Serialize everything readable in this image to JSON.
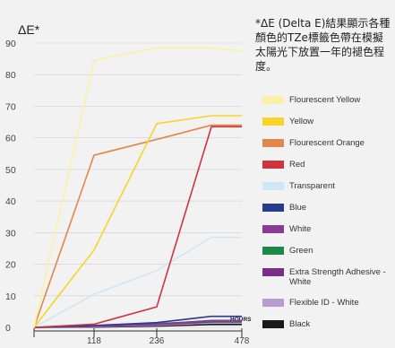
{
  "note": "*ΔE (Delta E)結果顯示各種顏色的TZe標籤色帶在模擬太陽光下放置一年的褪色程度。",
  "chart_data": {
    "type": "line",
    "ylabel": "ΔE*",
    "xlabel": "HOURS",
    "x": [
      0,
      118,
      236,
      354,
      478
    ],
    "x_tick_labels": [
      "118",
      "236",
      "478"
    ],
    "x_tick_values": [
      118,
      236,
      478
    ],
    "ylim": [
      0,
      90
    ],
    "yticks": [
      0,
      10,
      20,
      30,
      40,
      50,
      60,
      70,
      80,
      90
    ],
    "grid": true,
    "legend_position": "right",
    "series": [
      {
        "name": "Flourescent Yellow",
        "color": "#fbf0a6",
        "values": [
          0,
          84.5,
          88.5,
          88.5,
          87.5
        ]
      },
      {
        "name": "Yellow",
        "color": "#f8d32a",
        "values": [
          0,
          24.5,
          64.5,
          67,
          67
        ]
      },
      {
        "name": "Flourescent Orange",
        "color": "#e1874a",
        "values": [
          0,
          54.5,
          59.5,
          64,
          64
        ]
      },
      {
        "name": "Red",
        "color": "#d0343c",
        "values": [
          0,
          1,
          6.5,
          63.5,
          63.5
        ]
      },
      {
        "name": "Transparent",
        "color": "#cfe6f7",
        "values": [
          0,
          10.5,
          18,
          28.5,
          28.5
        ]
      },
      {
        "name": "Blue",
        "color": "#283c8e",
        "values": [
          0,
          0.6,
          1.5,
          3.5,
          3.5
        ]
      },
      {
        "name": "White",
        "color": "#8b3a96",
        "values": [
          0,
          0.4,
          1,
          2.2,
          2.2
        ]
      },
      {
        "name": "Green",
        "color": "#1a8a4a",
        "values": [
          0,
          0.4,
          1.2,
          2,
          2
        ]
      },
      {
        "name": "Extra Strength Adhesive - White",
        "color": "#7a2e8a",
        "values": [
          0,
          0.3,
          0.9,
          1.7,
          1.7
        ]
      },
      {
        "name": "Flexible ID - White",
        "color": "#b89bd1",
        "values": [
          0,
          0.2,
          0.7,
          1.4,
          1.4
        ]
      },
      {
        "name": "Black",
        "color": "#1a1a1a",
        "values": [
          0,
          0.1,
          0.4,
          0.9,
          0.9
        ]
      }
    ]
  }
}
